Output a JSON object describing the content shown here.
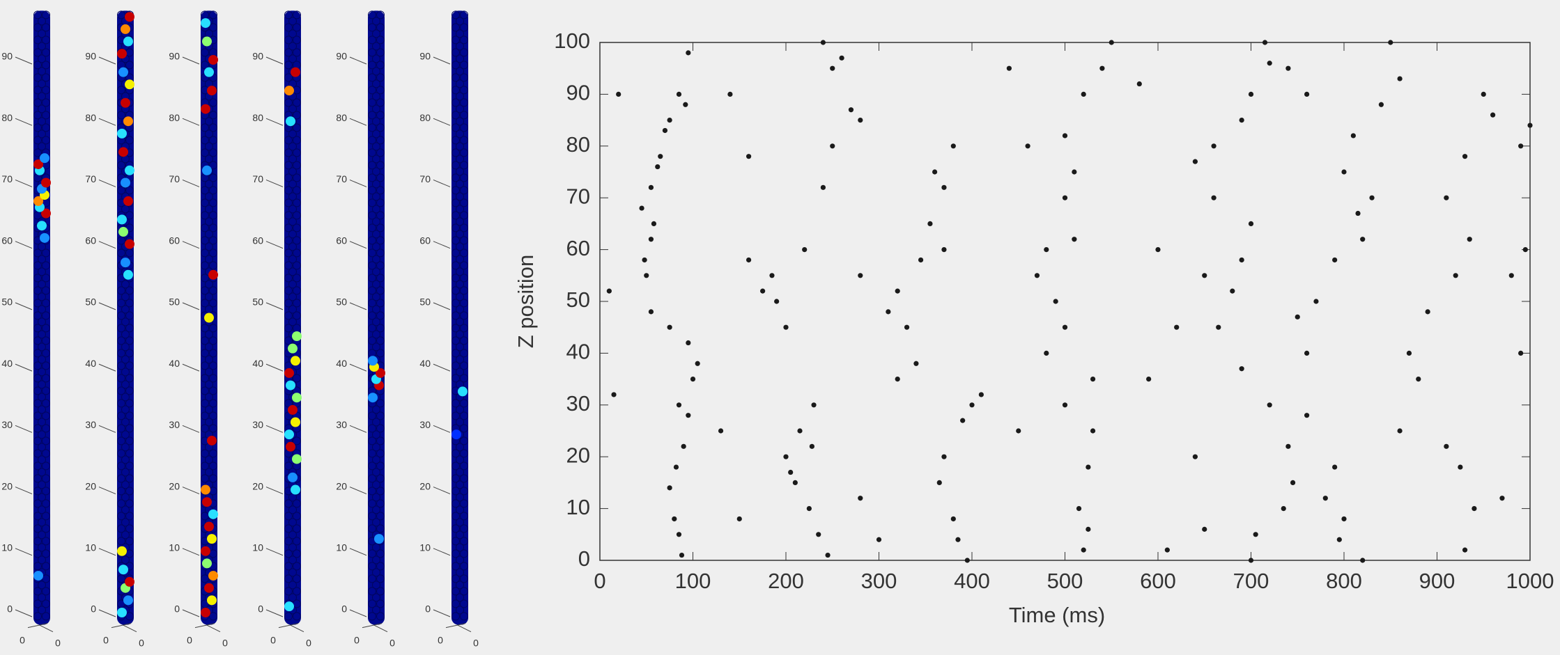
{
  "chart_data": [
    {
      "type": "columns",
      "ylim": [
        -2,
        98
      ],
      "yticks": [
        0,
        10,
        20,
        30,
        40,
        50,
        60,
        70,
        80,
        90
      ],
      "corner_labels": [
        "0",
        "0"
      ],
      "base_color": "#00088f",
      "panels": [
        {
          "spots": [
            {
              "z": 6,
              "color": "#1890ff"
            },
            {
              "z": 61,
              "color": "#1890ff"
            },
            {
              "z": 63,
              "color": "#28e0ff"
            },
            {
              "z": 65,
              "color": "#c80000"
            },
            {
              "z": 66,
              "color": "#28e0ff"
            },
            {
              "z": 67,
              "color": "#ff8a00"
            },
            {
              "z": 68,
              "color": "#f5f000"
            },
            {
              "z": 69,
              "color": "#1890ff"
            },
            {
              "z": 70,
              "color": "#c80000"
            },
            {
              "z": 72,
              "color": "#28e0ff"
            },
            {
              "z": 73,
              "color": "#c80000"
            },
            {
              "z": 74,
              "color": "#1890ff"
            }
          ]
        },
        {
          "spots": [
            {
              "z": 0,
              "color": "#28e0ff"
            },
            {
              "z": 2,
              "color": "#1890ff"
            },
            {
              "z": 4,
              "color": "#8dff70"
            },
            {
              "z": 5,
              "color": "#c80000"
            },
            {
              "z": 7,
              "color": "#28e0ff"
            },
            {
              "z": 10,
              "color": "#f5f000"
            },
            {
              "z": 55,
              "color": "#28e0ff"
            },
            {
              "z": 57,
              "color": "#1890ff"
            },
            {
              "z": 60,
              "color": "#c80000"
            },
            {
              "z": 62,
              "color": "#8dff70"
            },
            {
              "z": 64,
              "color": "#28e0ff"
            },
            {
              "z": 67,
              "color": "#c80000"
            },
            {
              "z": 70,
              "color": "#1890ff"
            },
            {
              "z": 72,
              "color": "#28e0ff"
            },
            {
              "z": 75,
              "color": "#c80000"
            },
            {
              "z": 78,
              "color": "#28e0ff"
            },
            {
              "z": 80,
              "color": "#ff8a00"
            },
            {
              "z": 83,
              "color": "#c80000"
            },
            {
              "z": 86,
              "color": "#f5f000"
            },
            {
              "z": 88,
              "color": "#1890ff"
            },
            {
              "z": 91,
              "color": "#c80000"
            },
            {
              "z": 93,
              "color": "#28e0ff"
            },
            {
              "z": 95,
              "color": "#ff8a00"
            },
            {
              "z": 97,
              "color": "#c80000"
            }
          ]
        },
        {
          "spots": [
            {
              "z": 0,
              "color": "#c80000"
            },
            {
              "z": 2,
              "color": "#f5f000"
            },
            {
              "z": 4,
              "color": "#c80000"
            },
            {
              "z": 6,
              "color": "#ff8a00"
            },
            {
              "z": 8,
              "color": "#8dff70"
            },
            {
              "z": 10,
              "color": "#c80000"
            },
            {
              "z": 12,
              "color": "#f5f000"
            },
            {
              "z": 14,
              "color": "#c80000"
            },
            {
              "z": 16,
              "color": "#28e0ff"
            },
            {
              "z": 18,
              "color": "#c80000"
            },
            {
              "z": 20,
              "color": "#ff8a00"
            },
            {
              "z": 28,
              "color": "#c80000"
            },
            {
              "z": 48,
              "color": "#f5f000"
            },
            {
              "z": 55,
              "color": "#c80000"
            },
            {
              "z": 72,
              "color": "#1890ff"
            },
            {
              "z": 82,
              "color": "#c80000"
            },
            {
              "z": 85,
              "color": "#c80000"
            },
            {
              "z": 88,
              "color": "#28e0ff"
            },
            {
              "z": 90,
              "color": "#c80000"
            },
            {
              "z": 93,
              "color": "#8dff70"
            },
            {
              "z": 96,
              "color": "#28e0ff"
            }
          ]
        },
        {
          "spots": [
            {
              "z": 1,
              "color": "#28e0ff"
            },
            {
              "z": 20,
              "color": "#28e0ff"
            },
            {
              "z": 22,
              "color": "#1890ff"
            },
            {
              "z": 25,
              "color": "#8dff70"
            },
            {
              "z": 27,
              "color": "#c80000"
            },
            {
              "z": 29,
              "color": "#28e0ff"
            },
            {
              "z": 31,
              "color": "#f5f000"
            },
            {
              "z": 33,
              "color": "#c80000"
            },
            {
              "z": 35,
              "color": "#8dff70"
            },
            {
              "z": 37,
              "color": "#28e0ff"
            },
            {
              "z": 39,
              "color": "#c80000"
            },
            {
              "z": 41,
              "color": "#f5f000"
            },
            {
              "z": 43,
              "color": "#8dff70"
            },
            {
              "z": 45,
              "color": "#8dff70"
            },
            {
              "z": 80,
              "color": "#28e0ff"
            },
            {
              "z": 85,
              "color": "#ff8a00"
            },
            {
              "z": 88,
              "color": "#c80000"
            }
          ]
        },
        {
          "spots": [
            {
              "z": 35,
              "color": "#1890ff"
            },
            {
              "z": 37,
              "color": "#c80000"
            },
            {
              "z": 38,
              "color": "#28e0ff"
            },
            {
              "z": 39,
              "color": "#c80000"
            },
            {
              "z": 40,
              "color": "#f5f000"
            },
            {
              "z": 41,
              "color": "#1890ff"
            },
            {
              "z": 12,
              "color": "#1890ff"
            }
          ]
        },
        {
          "spots": [
            {
              "z": 29,
              "color": "#0030ff"
            },
            {
              "z": 36,
              "color": "#28e0ff"
            }
          ]
        }
      ]
    },
    {
      "type": "scatter",
      "xlabel": "Time (ms)",
      "ylabel": "Z position",
      "color": "#1a1a1a",
      "xlim": [
        0,
        1000
      ],
      "ylim": [
        0,
        100
      ],
      "xticks": [
        0,
        100,
        200,
        300,
        400,
        500,
        600,
        700,
        800,
        900,
        1000
      ],
      "yticks": [
        0,
        10,
        20,
        30,
        40,
        50,
        60,
        70,
        80,
        90,
        100
      ],
      "x": [
        88,
        85,
        80,
        75,
        82,
        90,
        95,
        85,
        100,
        105,
        95,
        75,
        55,
        50,
        55,
        45,
        55,
        65,
        75,
        85,
        95,
        70,
        92,
        62,
        48,
        58,
        245,
        235,
        225,
        210,
        200,
        215,
        230,
        190,
        175,
        200,
        220,
        240,
        250,
        270,
        280,
        250,
        240,
        205,
        185,
        228,
        260,
        395,
        380,
        365,
        370,
        390,
        400,
        340,
        320,
        310,
        320,
        345,
        370,
        355,
        370,
        380,
        410,
        385,
        330,
        360,
        520,
        515,
        525,
        530,
        500,
        480,
        500,
        470,
        480,
        510,
        500,
        510,
        500,
        520,
        540,
        550,
        530,
        490,
        525,
        700,
        705,
        735,
        745,
        740,
        720,
        690,
        665,
        650,
        680,
        690,
        700,
        660,
        640,
        660,
        690,
        700,
        720,
        715,
        750,
        820,
        800,
        780,
        790,
        760,
        760,
        770,
        790,
        820,
        830,
        800,
        810,
        840,
        860,
        850,
        815,
        795,
        930,
        940,
        925,
        910,
        880,
        870,
        890,
        920,
        935,
        910,
        930,
        950,
        990,
        980,
        990,
        995,
        960,
        20,
        10,
        15,
        140,
        160,
        150,
        280,
        300,
        440,
        460,
        580,
        610,
        620,
        600,
        740,
        760,
        640,
        590,
        450,
        280,
        160,
        130,
        650,
        860,
        970,
        1000
      ],
      "y": [
        1,
        5,
        8,
        14,
        18,
        22,
        28,
        30,
        35,
        38,
        42,
        45,
        48,
        55,
        62,
        68,
        72,
        78,
        85,
        90,
        98,
        83,
        88,
        76,
        58,
        65,
        1,
        5,
        10,
        15,
        20,
        25,
        30,
        50,
        52,
        45,
        60,
        72,
        80,
        87,
        85,
        95,
        100,
        17,
        55,
        22,
        97,
        0,
        8,
        15,
        20,
        27,
        30,
        38,
        35,
        48,
        52,
        58,
        60,
        65,
        72,
        80,
        32,
        4,
        45,
        75,
        2,
        10,
        18,
        25,
        30,
        40,
        45,
        55,
        60,
        62,
        70,
        75,
        82,
        90,
        95,
        100,
        35,
        50,
        6,
        0,
        5,
        10,
        15,
        22,
        30,
        37,
        45,
        55,
        52,
        58,
        65,
        70,
        77,
        80,
        85,
        90,
        96,
        100,
        47,
        0,
        8,
        12,
        18,
        28,
        40,
        50,
        58,
        62,
        70,
        75,
        82,
        88,
        93,
        100,
        67,
        4,
        2,
        10,
        18,
        22,
        35,
        40,
        48,
        55,
        62,
        70,
        78,
        90,
        80,
        55,
        40,
        60,
        86,
        90,
        52,
        32,
        90,
        78,
        8,
        12,
        4,
        95,
        80,
        92,
        2,
        45,
        60,
        95,
        90,
        20,
        35,
        25,
        55,
        58,
        25,
        6,
        25,
        12,
        84
      ]
    }
  ]
}
